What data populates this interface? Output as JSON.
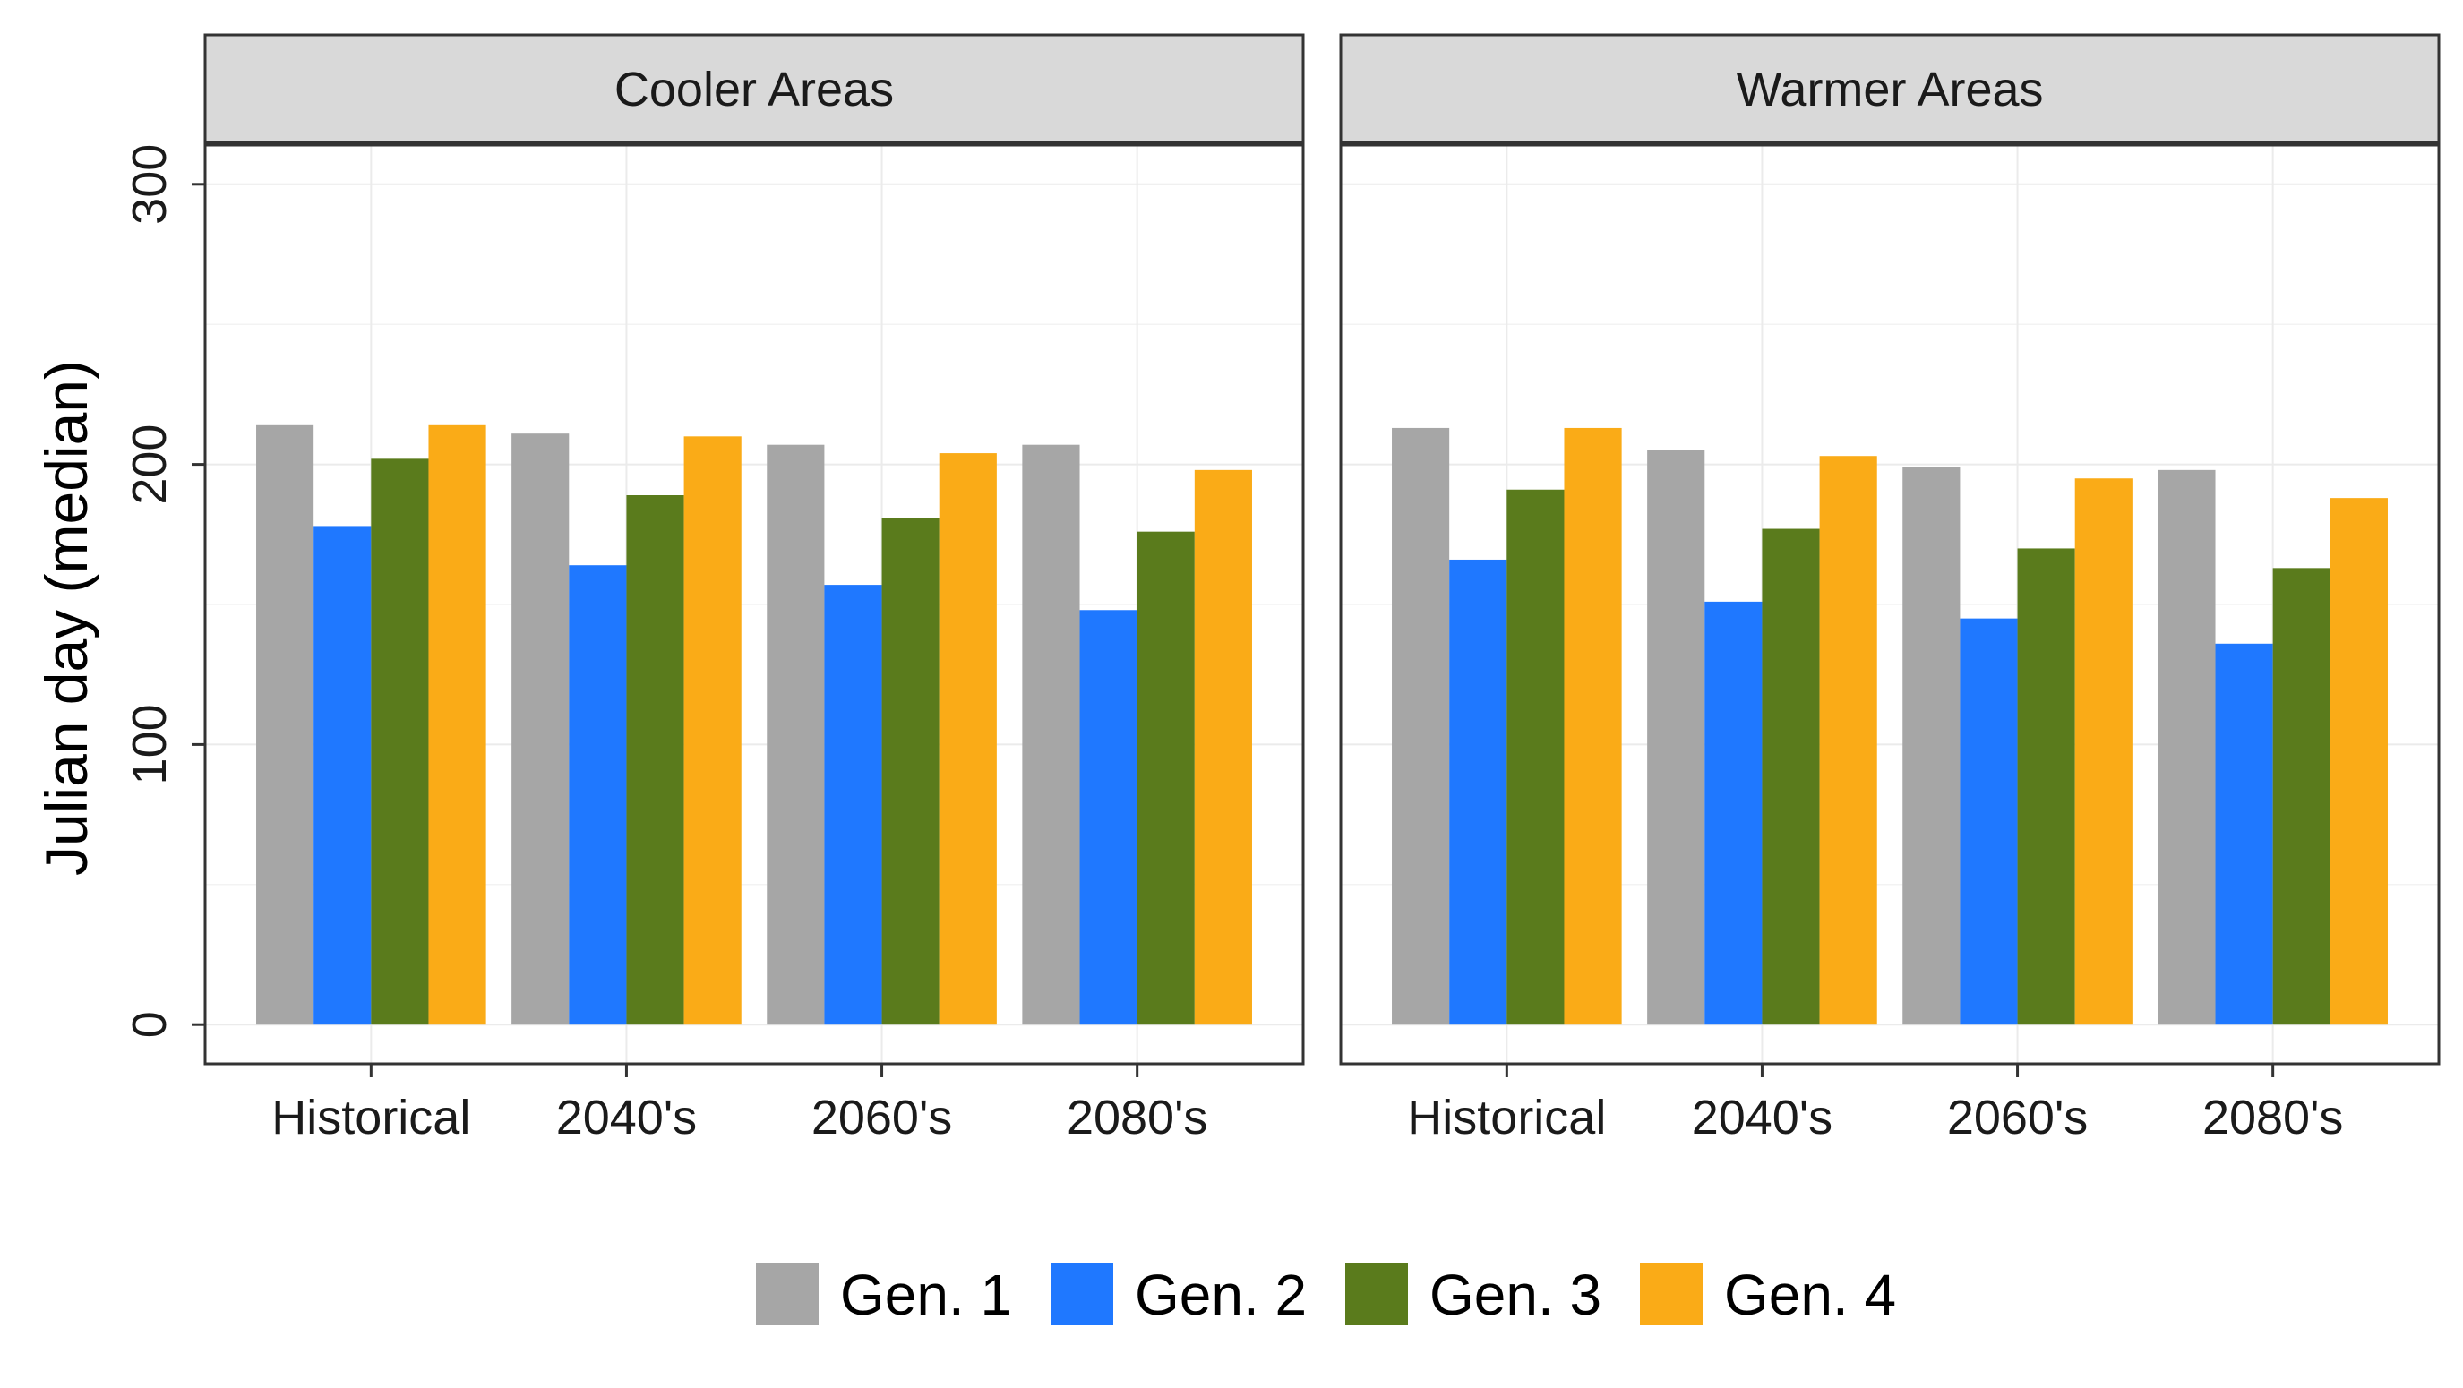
{
  "chart_data": {
    "type": "bar",
    "ylabel": "Julian day (median)",
    "xlabel": "",
    "ylim": [
      -14,
      314
    ],
    "yticks": [
      0,
      100,
      200,
      300
    ],
    "categories": [
      "Historical",
      "2040's",
      "2060's",
      "2080's"
    ],
    "legend": {
      "position": "bottom",
      "entries": [
        "Gen. 1",
        "Gen. 2",
        "Gen. 3",
        "Gen. 4"
      ]
    },
    "colors": [
      "#A6A6A6",
      "#1F78FF",
      "#5A7B1C",
      "#FAAB17"
    ],
    "panels": [
      {
        "title": "Cooler Areas",
        "series": [
          {
            "name": "Gen. 1",
            "values": [
              214,
              211,
              207,
              207
            ]
          },
          {
            "name": "Gen. 2",
            "values": [
              178,
              164,
              157,
              148
            ]
          },
          {
            "name": "Gen. 3",
            "values": [
              202,
              189,
              181,
              176
            ]
          },
          {
            "name": "Gen. 4",
            "values": [
              214,
              210,
              204,
              198
            ]
          }
        ]
      },
      {
        "title": "Warmer Areas",
        "series": [
          {
            "name": "Gen. 1",
            "values": [
              213,
              205,
              199,
              198
            ]
          },
          {
            "name": "Gen. 2",
            "values": [
              166,
              151,
              145,
              136
            ]
          },
          {
            "name": "Gen. 3",
            "values": [
              191,
              177,
              170,
              163
            ]
          },
          {
            "name": "Gen. 4",
            "values": [
              213,
              203,
              195,
              188
            ]
          }
        ]
      }
    ]
  }
}
